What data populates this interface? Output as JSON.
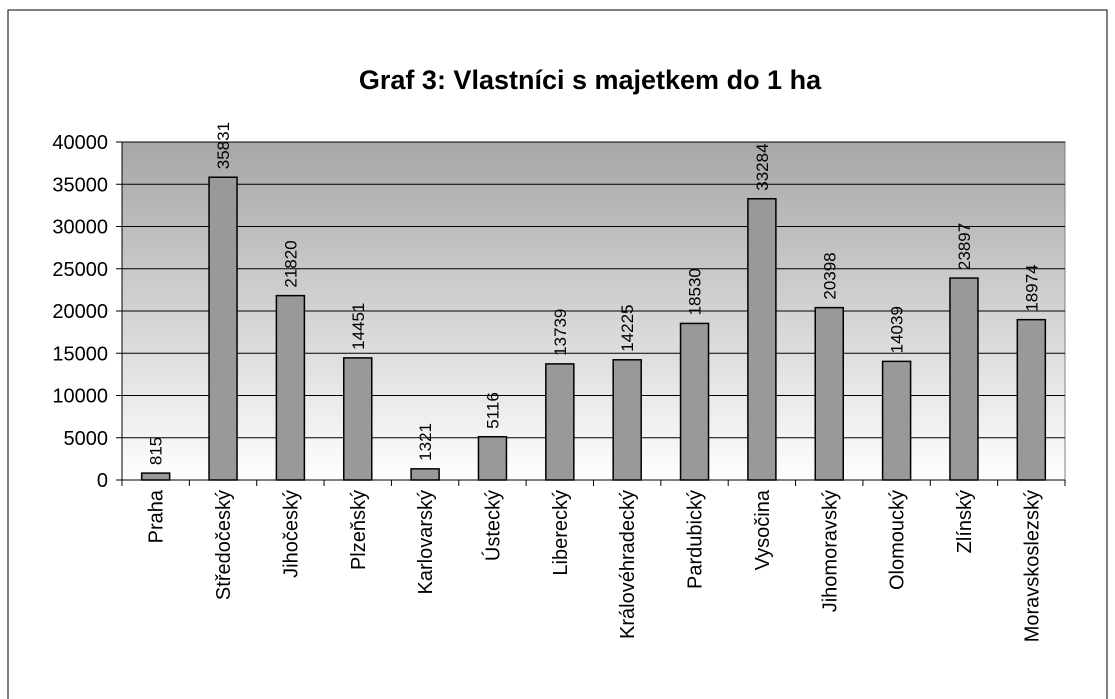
{
  "chart_data": {
    "type": "bar",
    "title": "Graf 3: Vlastníci s majetkem do 1 ha",
    "categories": [
      "Praha",
      "Středočeský",
      "Jihočeský",
      "Plzeňský",
      "Karlovarský",
      "Ústecký",
      "Liberecký",
      "Královéhradecký",
      "Pardubický",
      "Vysočina",
      "Jihomoravský",
      "Olomoucký",
      "Zlínský",
      "Moravskoslezský"
    ],
    "values": [
      815,
      35831,
      21820,
      14451,
      1321,
      5116,
      13739,
      14225,
      18530,
      33284,
      20398,
      14039,
      23897,
      18974
    ],
    "color": "#999999",
    "ylim": [
      0,
      40000
    ],
    "yticks": [
      0,
      5000,
      10000,
      15000,
      20000,
      25000,
      30000,
      35000,
      40000
    ],
    "grid": true
  }
}
